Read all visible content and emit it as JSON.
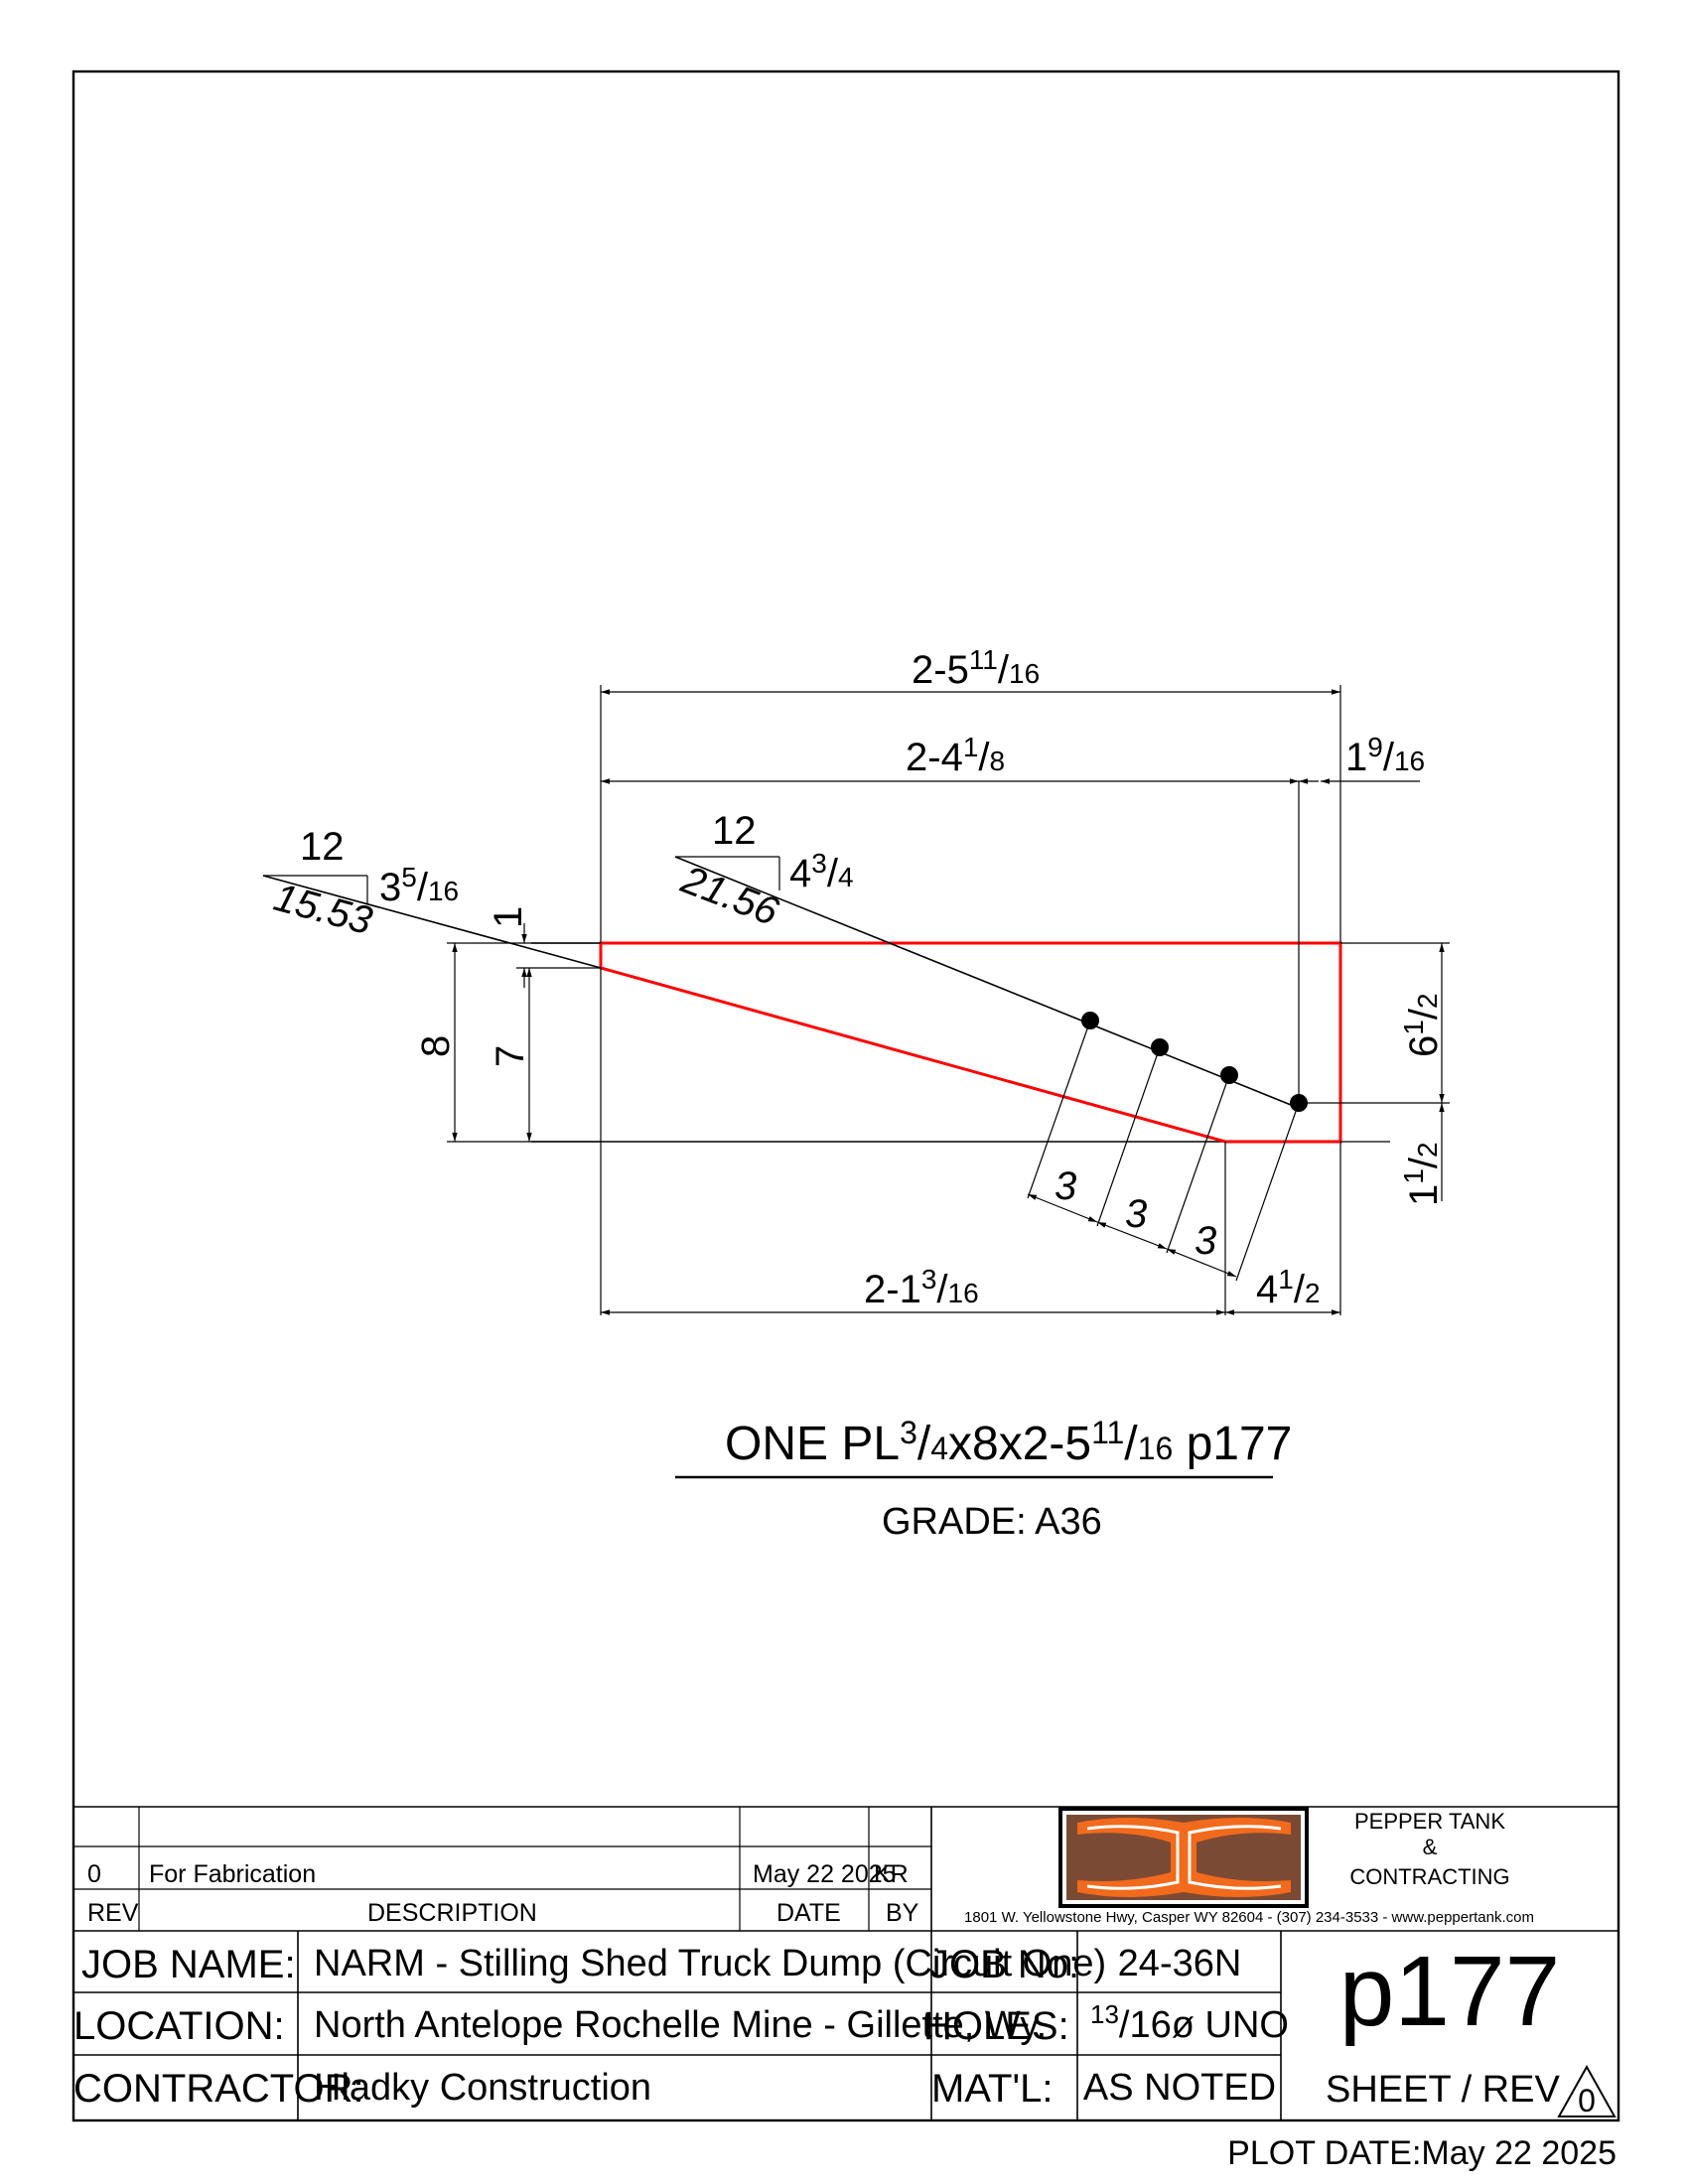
{
  "dimensions": {
    "overall_length": {
      "whole": "2-5",
      "num": "11",
      "den": "16"
    },
    "hole_line_length": {
      "whole": "2-4",
      "num": "1",
      "den": "8"
    },
    "end_offset": {
      "whole": "1",
      "num": "9",
      "den": "16"
    },
    "slope1_rise": "12",
    "slope1_run": {
      "whole": "3",
      "num": "5",
      "den": "16"
    },
    "slope1_angle": "15.53",
    "slope2_rise": "12",
    "slope2_run": {
      "whole": "4",
      "num": "3",
      "den": "4"
    },
    "slope2_angle": "21.56",
    "top_offset": "1",
    "height": "8",
    "height_inner": "7",
    "right_height": {
      "whole": "6",
      "num": "1",
      "den": "2"
    },
    "right_bottom": {
      "whole": "1",
      "num": "1",
      "den": "2"
    },
    "hole_spacing": [
      "3",
      "3",
      "3"
    ],
    "bottom_length": {
      "whole": "2-1",
      "num": "3",
      "den": "16"
    },
    "bottom_end": {
      "whole": "4",
      "num": "1",
      "den": "2"
    }
  },
  "part": {
    "prefix": "ONE PL",
    "thk_num": "3",
    "thk_den": "4",
    "mid": "x8x2-5",
    "len_num": "11",
    "len_den": "16",
    "mark": "p177",
    "grade": "GRADE: A36"
  },
  "revision": {
    "rev": "0",
    "description": "For Fabrication",
    "date": "May 22 2025",
    "by": "KR",
    "headers": {
      "rev": "REV",
      "description": "DESCRIPTION",
      "date": "DATE",
      "by": "BY"
    }
  },
  "company": {
    "name1": "PEPPER TANK",
    "name2": "&",
    "name3": "CONTRACTING",
    "address": "1801 W. Yellowstone Hwy, Casper WY 82604  -  (307) 234-3533  -  www.peppertank.com",
    "logo_colors": {
      "brown": "#7b4a35",
      "orange": "#f26a1b"
    }
  },
  "title_block": {
    "job_name_label": "JOB NAME:",
    "job_name": "NARM - Stilling Shed Truck Dump (Circuit One)",
    "location_label": "LOCATION:",
    "location": "North Antelope Rochelle Mine - Gillette, Wy.",
    "contractor_label": "CONTRACTOR:",
    "contractor": "Hladky Construction",
    "job_no_label": "JOB No:",
    "job_no": "24-36N",
    "holes_label": "HOLES:",
    "holes_num": "13",
    "holes_rest": "/16ø UNO",
    "matl_label": "MAT'L:",
    "matl": "AS NOTED",
    "sheet": "p177",
    "sheet_rev_label": "SHEET / REV",
    "sheet_rev": "0",
    "plot_date_label": "PLOT DATE:",
    "plot_date": "May 22 2025"
  }
}
